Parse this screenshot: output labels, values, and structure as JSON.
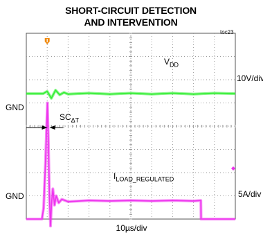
{
  "title": [
    "SHORT-CIRCUIT DETECTION",
    "AND INTERVENTION"
  ],
  "figure_tag": "toc23",
  "labels": {
    "vdd_main": "V",
    "vdd_sub": "DD",
    "iload_main": "I",
    "iload_sub": "LOAD_REGULATED",
    "sc_main": "SC",
    "sc_sub": "ΔT",
    "gnd_top": "GND",
    "gnd_bottom": "GND",
    "scale_vdd": "10V/div",
    "scale_iload": "5A/div",
    "time_scale": "10µs/div"
  },
  "colors": {
    "vdd_trace": "#33ee33",
    "iload_trace": "#ee33ee",
    "grid": "#9a9a9a",
    "trigger_marker": "#f08a10"
  },
  "chart_data": {
    "type": "line",
    "title": "SHORT-CIRCUIT DETECTION AND INTERVENTION",
    "x_unit": "µs",
    "xlim": [
      0,
      100
    ],
    "grid": true,
    "x_divisions": 10,
    "y_divisions": 8,
    "series": [
      {
        "name": "VDD",
        "scale": "10V/div",
        "ground_div": 3,
        "points": [
          [
            0,
            5.4
          ],
          [
            8,
            5.4
          ],
          [
            10,
            5.5
          ],
          [
            12,
            5.2
          ],
          [
            14,
            5.55
          ],
          [
            16,
            5.35
          ],
          [
            18,
            5.45
          ],
          [
            20,
            5.38
          ],
          [
            30,
            5.42
          ],
          [
            40,
            5.38
          ],
          [
            50,
            5.42
          ],
          [
            60,
            5.38
          ],
          [
            70,
            5.42
          ],
          [
            80,
            5.38
          ],
          [
            90,
            5.42
          ],
          [
            100,
            5.4
          ]
        ]
      },
      {
        "name": "ILOAD_REGULATED",
        "scale": "5A/div",
        "ground_div": 0,
        "points": [
          [
            0,
            0
          ],
          [
            7.5,
            0
          ],
          [
            8.3,
            0.5
          ],
          [
            9.2,
            2.5
          ],
          [
            10.1,
            5.0
          ],
          [
            10.6,
            3.2
          ],
          [
            11.1,
            0.9
          ],
          [
            11.6,
            -0.3
          ],
          [
            12.1,
            0.7
          ],
          [
            12.7,
            1.3
          ],
          [
            13.5,
            0.6
          ],
          [
            14.3,
            1.0
          ],
          [
            15.5,
            0.7
          ],
          [
            17,
            0.85
          ],
          [
            20,
            0.75
          ],
          [
            30,
            0.8
          ],
          [
            40,
            0.78
          ],
          [
            50,
            0.8
          ],
          [
            60,
            0.78
          ],
          [
            70,
            0.8
          ],
          [
            80,
            0.78
          ],
          [
            83.5,
            0.8
          ],
          [
            83.6,
            0
          ],
          [
            100,
            0
          ]
        ]
      }
    ],
    "annotations": [
      {
        "text": "SCΔT",
        "from_x": 10.1,
        "to_x": 11.1
      }
    ]
  }
}
